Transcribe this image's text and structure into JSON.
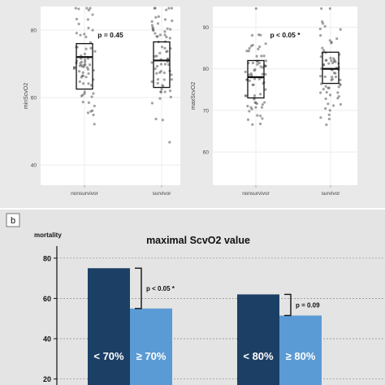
{
  "chart_data": [
    {
      "type": "scatter",
      "panel": "a-left",
      "ylabel": "minScvO2",
      "categories": [
        "nonsurvivor",
        "survivor"
      ],
      "yticks": [
        40,
        60,
        80
      ],
      "ylim": [
        34,
        87
      ],
      "annotation": "p = 0.45",
      "grid": true,
      "boxes": [
        {
          "category": "nonsurvivor",
          "q1": 62.5,
          "median": 72,
          "q3": 76
        },
        {
          "category": "survivor",
          "q1": 63,
          "median": 71,
          "q3": 76.5
        }
      ]
    },
    {
      "type": "scatter",
      "panel": "a-right",
      "ylabel": "maxScvO2",
      "categories": [
        "nonsurvivor",
        "survivor"
      ],
      "yticks": [
        60,
        70,
        80,
        90
      ],
      "ylim": [
        52,
        95
      ],
      "annotation": "p < 0.05 *",
      "grid": true,
      "boxes": [
        {
          "category": "nonsurvivor",
          "q1": 73,
          "median": 78,
          "q3": 82
        },
        {
          "category": "survivor",
          "q1": 76.5,
          "median": 80,
          "q3": 84
        }
      ]
    },
    {
      "type": "bar",
      "panel": "b",
      "panel_letter": "b",
      "title": "maximal ScvO2 value",
      "ylabel": "mortality",
      "yticks": [
        20,
        40,
        60,
        80
      ],
      "ylim": [
        17,
        88
      ],
      "grid": true,
      "bars": [
        {
          "label": "< 70%",
          "value": 75,
          "color": "#1c3f66"
        },
        {
          "label": "≥ 70%",
          "value": 55,
          "color": "#5b9bd5"
        },
        {
          "label": "< 80%",
          "value": 62,
          "color": "#1c3f66"
        },
        {
          "label": "≥ 80%",
          "value": 51.5,
          "color": "#5b9bd5"
        }
      ],
      "comparisons": [
        {
          "label": "p < 0.05 *",
          "between": [
            0,
            1
          ]
        },
        {
          "label": "p = 0.09",
          "between": [
            2,
            3
          ]
        }
      ]
    }
  ]
}
